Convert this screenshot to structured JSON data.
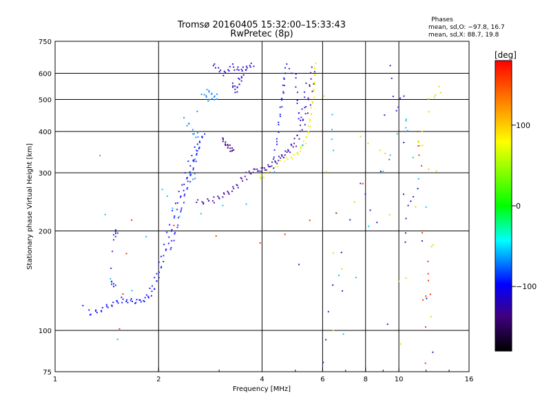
{
  "chart_data": {
    "type": "scatter",
    "title": "Tromsø 20160405 15:32:00–15:33:43",
    "subtitle": "RwPretec (8p)",
    "xlabel": "Frequency [MHz]",
    "ylabel": "Stationary phase Virtual Height [km]",
    "x_scale": "log",
    "y_scale": "log",
    "xlim": [
      1,
      16
    ],
    "ylim": [
      75,
      750
    ],
    "x_ticks": [
      1,
      2,
      4,
      6,
      8,
      10,
      16
    ],
    "x_tick_labels": [
      "1",
      "2",
      "4",
      "6",
      "8",
      "10",
      "16"
    ],
    "y_ticks": [
      75,
      100,
      200,
      300,
      400,
      500,
      600,
      750
    ],
    "y_tick_labels": [
      "75",
      "100",
      "200",
      "300",
      "400",
      "500",
      "600",
      "750"
    ],
    "grid": true,
    "grid_x": [
      2,
      4,
      6,
      8,
      10
    ],
    "grid_y": [
      100,
      200,
      300,
      400,
      500,
      600
    ],
    "phases_box": {
      "title": "Phases",
      "line_o": "mean, sd,O: −97.8, 16.7",
      "line_x": "mean, sd,X:  88.7, 19.8"
    },
    "colorbar": {
      "label": "[deg]",
      "range": [
        -180,
        180
      ],
      "ticks": [
        100,
        0,
        -100
      ],
      "tick_labels": [
        "100",
        "0",
        "−100"
      ],
      "colors": [
        "#ff0000",
        "#ff8000",
        "#ffff00",
        "#00ff00",
        "#00ffff",
        "#0000ff",
        "#400080",
        "#000000"
      ]
    },
    "traces": [
      {
        "name": "",
        "phase": -100,
        "color": "#1d1dff",
        "points": [
          [
            1.22,
            117
          ],
          [
            1.28,
            112
          ],
          [
            1.33,
            114
          ],
          [
            1.38,
            116
          ],
          [
            1.43,
            119
          ],
          [
            1.48,
            121
          ],
          [
            1.53,
            123
          ],
          [
            1.58,
            124
          ],
          [
            1.63,
            123
          ],
          [
            1.68,
            122
          ],
          [
            1.73,
            122
          ],
          [
            1.78,
            123
          ],
          [
            1.83,
            125
          ],
          [
            1.87,
            128
          ],
          [
            1.91,
            132
          ],
          [
            1.94,
            137
          ],
          [
            1.97,
            143
          ],
          [
            2.0,
            150
          ],
          [
            2.03,
            160
          ],
          [
            2.06,
            170
          ],
          [
            2.1,
            182
          ],
          [
            2.14,
            195
          ],
          [
            2.18,
            210
          ],
          [
            2.22,
            228
          ],
          [
            2.27,
            245
          ],
          [
            2.32,
            262
          ],
          [
            2.37,
            280
          ],
          [
            2.42,
            300
          ],
          [
            2.47,
            320
          ],
          [
            2.53,
            340
          ],
          [
            2.58,
            355
          ],
          [
            2.63,
            370
          ]
        ]
      },
      {
        "name": "",
        "phase": -100,
        "color": "#2a2aff",
        "points": [
          [
            2.15,
            175
          ],
          [
            2.2,
            190
          ],
          [
            2.25,
            205
          ],
          [
            2.3,
            225
          ],
          [
            2.35,
            245
          ],
          [
            2.4,
            265
          ],
          [
            2.45,
            285
          ],
          [
            2.5,
            305
          ],
          [
            2.55,
            330
          ],
          [
            2.6,
            355
          ],
          [
            2.65,
            380
          ],
          [
            2.7,
            395
          ]
        ]
      },
      {
        "name": "",
        "phase": -110,
        "color": "#3030e0",
        "points": [
          [
            1.5,
            200
          ],
          [
            1.52,
            195
          ],
          [
            1.48,
            190
          ],
          [
            1.46,
            140
          ],
          [
            1.48,
            138
          ],
          [
            1.5,
            137
          ]
        ]
      },
      {
        "name": "",
        "phase": -125,
        "color": "#4a1aa8",
        "points": [
          [
            2.6,
            248
          ],
          [
            2.7,
            245
          ],
          [
            2.8,
            246
          ],
          [
            2.9,
            248
          ],
          [
            3.0,
            252
          ],
          [
            3.1,
            256
          ],
          [
            3.2,
            262
          ],
          [
            3.3,
            268
          ],
          [
            3.4,
            276
          ],
          [
            3.5,
            285
          ],
          [
            3.6,
            294
          ],
          [
            3.7,
            300
          ],
          [
            3.8,
            304
          ],
          [
            3.9,
            306
          ],
          [
            4.0,
            308
          ],
          [
            4.1,
            310
          ],
          [
            4.2,
            312
          ],
          [
            4.3,
            316
          ],
          [
            4.4,
            322
          ],
          [
            4.5,
            330
          ],
          [
            4.6,
            338
          ],
          [
            4.7,
            345
          ],
          [
            4.8,
            352
          ],
          [
            4.9,
            360
          ],
          [
            5.0,
            370
          ],
          [
            5.1,
            385
          ],
          [
            5.2,
            405
          ],
          [
            5.3,
            430
          ],
          [
            5.4,
            460
          ],
          [
            5.5,
            500
          ],
          [
            5.55,
            540
          ],
          [
            5.6,
            580
          ],
          [
            5.63,
            620
          ]
        ]
      },
      {
        "name": "",
        "phase": 100,
        "color": "#f0f000",
        "points": [
          [
            3.9,
            288
          ],
          [
            4.0,
            293
          ],
          [
            4.3,
            310
          ],
          [
            4.6,
            330
          ],
          [
            4.8,
            334
          ],
          [
            5.0,
            340
          ],
          [
            5.1,
            350
          ],
          [
            5.2,
            360
          ],
          [
            5.3,
            372
          ],
          [
            5.4,
            395
          ],
          [
            5.45,
            420
          ],
          [
            5.5,
            450
          ],
          [
            5.55,
            480
          ],
          [
            5.6,
            510
          ],
          [
            5.63,
            550
          ],
          [
            5.65,
            600
          ],
          [
            5.66,
            640
          ]
        ]
      },
      {
        "name": "",
        "phase": -100,
        "color": "#2424f0",
        "points": [
          [
            4.3,
            330
          ],
          [
            4.4,
            360
          ],
          [
            4.45,
            400
          ],
          [
            4.5,
            440
          ],
          [
            4.55,
            480
          ],
          [
            4.6,
            520
          ],
          [
            4.63,
            560
          ],
          [
            4.66,
            600
          ],
          [
            4.7,
            630
          ],
          [
            5.0,
            600
          ],
          [
            5.05,
            520
          ],
          [
            5.1,
            460
          ],
          [
            5.15,
            430
          ],
          [
            5.3,
            480
          ],
          [
            5.35,
            560
          ]
        ]
      },
      {
        "name": "",
        "phase": -105,
        "color": "#3018d0",
        "points": [
          [
            2.9,
            640
          ],
          [
            3.0,
            620
          ],
          [
            3.1,
            600
          ],
          [
            3.2,
            615
          ],
          [
            3.3,
            630
          ],
          [
            3.4,
            620
          ],
          [
            3.5,
            610
          ],
          [
            3.6,
            620
          ],
          [
            3.7,
            630
          ],
          [
            3.8,
            640
          ],
          [
            3.3,
            560
          ],
          [
            3.35,
            540
          ],
          [
            3.4,
            530
          ],
          [
            3.45,
            550
          ],
          [
            3.5,
            575
          ],
          [
            3.55,
            590
          ]
        ]
      },
      {
        "name": "",
        "phase": -60,
        "color": "#1e90ff",
        "points": [
          [
            2.7,
            510
          ],
          [
            2.75,
            520
          ],
          [
            2.8,
            530
          ],
          [
            2.85,
            505
          ],
          [
            2.9,
            500
          ],
          [
            2.95,
            520
          ],
          [
            2.4,
            440
          ],
          [
            2.45,
            410
          ],
          [
            2.55,
            395
          ],
          [
            2.6,
            380
          ],
          [
            2.5,
            300
          ],
          [
            2.55,
            285
          ]
        ]
      },
      {
        "name": "",
        "phase": -140,
        "color": "#400080",
        "points": [
          [
            3.05,
            380
          ],
          [
            3.1,
            372
          ],
          [
            3.15,
            365
          ],
          [
            3.2,
            358
          ],
          [
            3.25,
            352
          ],
          [
            3.28,
            348
          ]
        ]
      },
      {
        "name": "",
        "phase": -15,
        "color": "#00c8ff",
        "points": [
          [
            1.35,
            340
          ],
          [
            1.52,
            93
          ],
          [
            2.05,
            270
          ],
          [
            2.3,
            220
          ],
          [
            3.6,
            245
          ],
          [
            6.4,
            450
          ],
          [
            6.45,
            345
          ],
          [
            6.9,
            98
          ],
          [
            9.0,
            300
          ],
          [
            10.5,
            440
          ],
          [
            10.6,
            400
          ],
          [
            12.0,
            240
          ]
        ]
      },
      {
        "name": "",
        "phase": 100,
        "color": "#e8d800",
        "points": [
          [
            6.1,
            520
          ],
          [
            6.5,
            100
          ],
          [
            7.8,
            380
          ],
          [
            9.2,
            345
          ],
          [
            10.2,
            90
          ],
          [
            11.5,
            375
          ],
          [
            11.6,
            360
          ],
          [
            12.3,
            510
          ],
          [
            12.5,
            110
          ],
          [
            12.8,
            500
          ],
          [
            13.2,
            550
          ]
        ]
      },
      {
        "name": "",
        "phase": 150,
        "color": "#ff3000",
        "points": [
          [
            1.52,
            100
          ],
          [
            1.65,
            218
          ],
          [
            3.9,
            183
          ],
          [
            6.5,
            230
          ],
          [
            11.2,
            400
          ],
          [
            11.5,
            310
          ],
          [
            11.8,
            80
          ],
          [
            12.0,
            160
          ],
          [
            12.2,
            130
          ]
        ]
      },
      {
        "name": "",
        "phase": -120,
        "color": "#2020d0",
        "points": [
          [
            6.0,
            80
          ],
          [
            6.4,
            135
          ],
          [
            7.7,
            280
          ],
          [
            8.6,
            210
          ],
          [
            9.4,
            640
          ],
          [
            9.8,
            460
          ],
          [
            10.3,
            520
          ],
          [
            10.4,
            185
          ],
          [
            10.6,
            235
          ],
          [
            11.3,
            270
          ],
          [
            12.5,
            85
          ],
          [
            5.1,
            160
          ]
        ]
      }
    ]
  }
}
